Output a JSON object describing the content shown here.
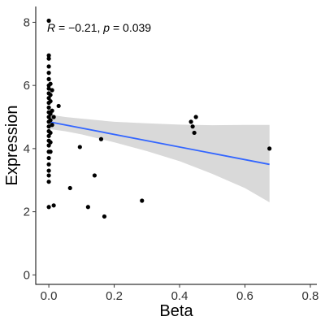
{
  "chart_data": {
    "type": "scatter",
    "xlabel": "Beta",
    "ylabel": "Expression",
    "xlim": [
      -0.04,
      0.82
    ],
    "ylim": [
      -0.3,
      8.5
    ],
    "x_ticks": [
      0.0,
      0.2,
      0.4,
      0.6,
      0.8
    ],
    "x_tick_labels": [
      "0.0",
      "0.2",
      "0.4",
      "0.6",
      "0.8"
    ],
    "y_ticks": [
      0,
      2,
      4,
      6,
      8
    ],
    "y_tick_labels": [
      "0",
      "2",
      "4",
      "6",
      "8"
    ],
    "grid": false,
    "annotation": {
      "r_symbol": "R",
      "r_text": " = −0.21, ",
      "p_symbol": "p",
      "p_text": " = 0.039"
    },
    "colors": {
      "points": "#000000",
      "fit_line": "#3366ff",
      "band": "#d9d9d9"
    },
    "points": [
      {
        "x": 0.0,
        "y": 8.05
      },
      {
        "x": 0.0,
        "y": 6.95
      },
      {
        "x": 0.0,
        "y": 6.85
      },
      {
        "x": 0.0,
        "y": 6.6
      },
      {
        "x": 0.0,
        "y": 6.4
      },
      {
        "x": 0.0,
        "y": 6.2
      },
      {
        "x": 0.0,
        "y": 6.0
      },
      {
        "x": 0.0,
        "y": 5.9
      },
      {
        "x": 0.0,
        "y": 5.75
      },
      {
        "x": 0.0,
        "y": 5.6
      },
      {
        "x": 0.0,
        "y": 5.45
      },
      {
        "x": 0.0,
        "y": 5.3
      },
      {
        "x": 0.0,
        "y": 5.15
      },
      {
        "x": 0.0,
        "y": 5.0
      },
      {
        "x": 0.0,
        "y": 4.85
      },
      {
        "x": 0.0,
        "y": 4.7
      },
      {
        "x": 0.0,
        "y": 4.55
      },
      {
        "x": 0.0,
        "y": 4.4
      },
      {
        "x": 0.0,
        "y": 4.25
      },
      {
        "x": 0.0,
        "y": 4.1
      },
      {
        "x": 0.0,
        "y": 3.9
      },
      {
        "x": 0.0,
        "y": 3.7
      },
      {
        "x": 0.0,
        "y": 3.5
      },
      {
        "x": 0.0,
        "y": 3.3
      },
      {
        "x": 0.0,
        "y": 3.15
      },
      {
        "x": 0.0,
        "y": 2.95
      },
      {
        "x": 0.0,
        "y": 2.15
      },
      {
        "x": 0.005,
        "y": 6.05
      },
      {
        "x": 0.005,
        "y": 5.7
      },
      {
        "x": 0.005,
        "y": 5.5
      },
      {
        "x": 0.005,
        "y": 5.1
      },
      {
        "x": 0.005,
        "y": 4.9
      },
      {
        "x": 0.005,
        "y": 4.5
      },
      {
        "x": 0.005,
        "y": 4.2
      },
      {
        "x": 0.005,
        "y": 3.9
      },
      {
        "x": 0.01,
        "y": 5.85
      },
      {
        "x": 0.01,
        "y": 5.2
      },
      {
        "x": 0.01,
        "y": 4.75
      },
      {
        "x": 0.015,
        "y": 5.0
      },
      {
        "x": 0.015,
        "y": 2.2
      },
      {
        "x": 0.03,
        "y": 5.35
      },
      {
        "x": 0.065,
        "y": 2.75
      },
      {
        "x": 0.095,
        "y": 4.05
      },
      {
        "x": 0.12,
        "y": 2.15
      },
      {
        "x": 0.14,
        "y": 3.15
      },
      {
        "x": 0.16,
        "y": 4.3
      },
      {
        "x": 0.17,
        "y": 1.85
      },
      {
        "x": 0.285,
        "y": 2.35
      },
      {
        "x": 0.435,
        "y": 4.85
      },
      {
        "x": 0.44,
        "y": 4.7
      },
      {
        "x": 0.445,
        "y": 4.5
      },
      {
        "x": 0.45,
        "y": 5.0
      },
      {
        "x": 0.675,
        "y": 4.0
      }
    ],
    "fit": {
      "x": [
        0.0,
        0.675
      ],
      "y": [
        4.85,
        3.5
      ]
    },
    "confidence_band": {
      "x": [
        0.0,
        0.05,
        0.1,
        0.2,
        0.3,
        0.4,
        0.5,
        0.6,
        0.675
      ],
      "lower": [
        4.62,
        4.55,
        4.45,
        4.2,
        3.92,
        3.6,
        3.2,
        2.75,
        2.3
      ],
      "upper": [
        5.08,
        5.0,
        4.95,
        4.85,
        4.8,
        4.76,
        4.74,
        4.75,
        4.75
      ]
    }
  }
}
